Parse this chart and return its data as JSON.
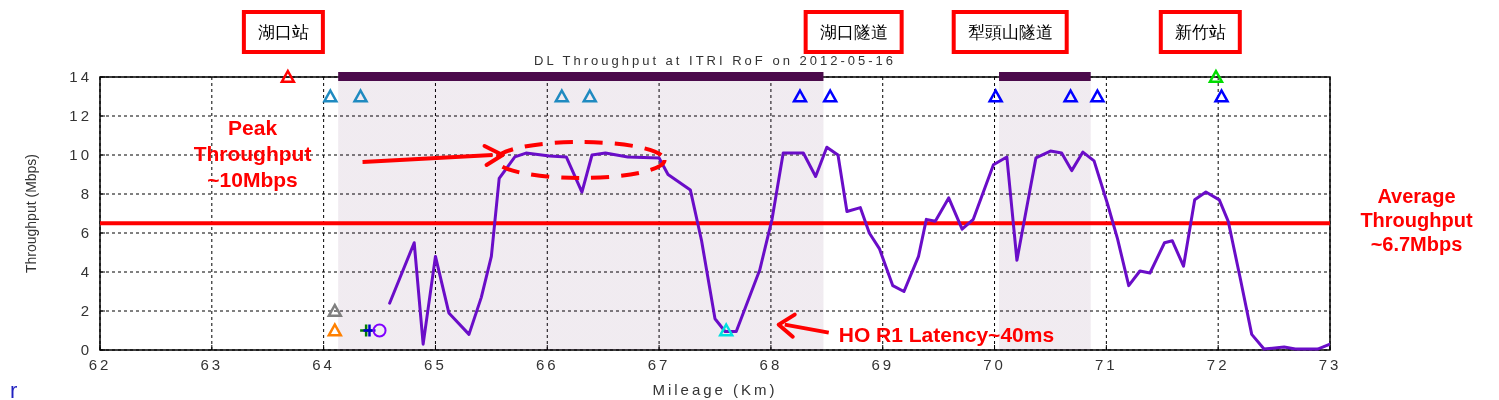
{
  "chart_data": {
    "type": "line",
    "title": "DL Throughput at ITRI RoF on 2012-05-16",
    "xlabel": "Mileage (Km)",
    "ylabel": "Throughput (Mbps)",
    "xlim": [
      62,
      73
    ],
    "xticks": [
      62,
      63,
      64,
      65,
      66,
      67,
      68,
      69,
      70,
      71,
      72,
      73
    ],
    "ylim": [
      0,
      14
    ],
    "yticks": [
      0,
      2,
      4,
      6,
      8,
      10,
      12,
      14
    ],
    "grid": true,
    "line_style": "solid",
    "series": [
      {
        "color": "#6a0dc8",
        "marker": "none",
        "x": [
          64.59,
          64.81,
          64.89,
          65.0,
          65.12,
          65.3,
          65.41,
          65.5,
          65.57,
          65.71,
          65.81,
          66.02,
          66.17,
          66.31,
          66.4,
          66.52,
          66.72,
          67.0,
          67.08,
          67.28,
          67.38,
          67.5,
          67.59,
          67.69,
          67.9,
          68.01,
          68.11,
          68.29,
          68.4,
          68.5,
          68.6,
          68.68,
          68.8,
          68.88,
          68.97,
          69.09,
          69.19,
          69.32,
          69.39,
          69.47,
          69.59,
          69.71,
          69.81,
          69.99,
          70.11,
          70.2,
          70.37,
          70.5,
          70.6,
          70.69,
          70.79,
          70.89,
          71.01,
          71.1,
          71.2,
          71.3,
          71.39,
          71.52,
          71.59,
          71.69,
          71.79,
          71.89,
          72.01,
          72.09,
          72.2,
          72.3,
          72.41,
          72.59,
          72.69,
          72.89,
          73.0
        ],
        "values": [
          2.4,
          5.5,
          0.3,
          4.8,
          1.9,
          0.8,
          2.7,
          4.8,
          8.8,
          9.9,
          10.1,
          9.95,
          9.9,
          8.1,
          10.0,
          10.1,
          9.9,
          9.85,
          9.0,
          8.2,
          5.6,
          1.6,
          0.95,
          0.95,
          4.1,
          6.7,
          10.1,
          10.1,
          8.9,
          10.4,
          10.0,
          7.1,
          7.3,
          6.0,
          5.2,
          3.3,
          3.0,
          4.8,
          6.7,
          6.6,
          7.8,
          6.2,
          6.7,
          9.5,
          9.9,
          4.6,
          9.85,
          10.2,
          10.1,
          9.2,
          10.15,
          9.7,
          7.5,
          5.7,
          3.3,
          4.05,
          3.95,
          5.5,
          5.6,
          4.3,
          7.7,
          8.1,
          7.7,
          6.6,
          3.6,
          0.8,
          0.05,
          0.15,
          0.05,
          0.05,
          0.3
        ]
      },
      {
        "type": "scatter",
        "color": "#ff0000",
        "marker": "triangle",
        "x": [
          63.68
        ],
        "values": [
          14
        ]
      },
      {
        "type": "scatter",
        "color": "#00dd00",
        "marker": "triangle",
        "x": [
          71.98
        ],
        "values": [
          14
        ]
      },
      {
        "type": "scatter",
        "color": "#1f8ac0",
        "marker": "triangle",
        "x": [
          64.06,
          64.33,
          66.13,
          66.38
        ],
        "values": [
          13,
          13,
          13,
          13
        ]
      },
      {
        "type": "scatter",
        "color": "#0000ff",
        "marker": "triangle",
        "x": [
          68.26,
          68.53,
          70.01,
          70.68,
          70.92,
          72.03
        ],
        "values": [
          13,
          13,
          13,
          13,
          13,
          13
        ]
      },
      {
        "type": "scatter",
        "color": "#808080",
        "marker": "triangle",
        "x": [
          64.1
        ],
        "values": [
          2.0
        ]
      },
      {
        "type": "scatter",
        "color": "#ff8000",
        "marker": "triangle",
        "x": [
          64.1
        ],
        "values": [
          1.0
        ]
      },
      {
        "type": "scatter",
        "color": "#008000",
        "marker": "cross",
        "x": [
          64.38
        ],
        "values": [
          1.0
        ]
      },
      {
        "type": "scatter",
        "color": "#0000cc",
        "marker": "cross",
        "x": [
          64.41
        ],
        "values": [
          1.0
        ]
      },
      {
        "type": "scatter",
        "color": "#8000ff",
        "marker": "circle",
        "x": [
          64.5
        ],
        "values": [
          1.0
        ]
      },
      {
        "type": "scatter",
        "color": "#00e0e0",
        "marker": "triangle",
        "x": [
          67.6
        ],
        "values": [
          1.0
        ]
      }
    ],
    "ref_lines": [
      {
        "axis": "y",
        "value": 6.5,
        "label": "Average\nThroughput\n~6.7Mbps",
        "color": "#ff0000"
      }
    ],
    "bands": [
      {
        "axis": "x",
        "from": 64.13,
        "to": 68.47,
        "color": "#4b0a4b"
      },
      {
        "axis": "x",
        "from": 70.04,
        "to": 70.86,
        "color": "#4b0a4b"
      }
    ],
    "annotations": [
      "湖口站",
      "湖口隧道",
      "犁頭山隧道",
      "新竹站",
      "Peak\nThroughput\n~10Mbps",
      "HO R1 Latency~40ms",
      "r"
    ]
  }
}
